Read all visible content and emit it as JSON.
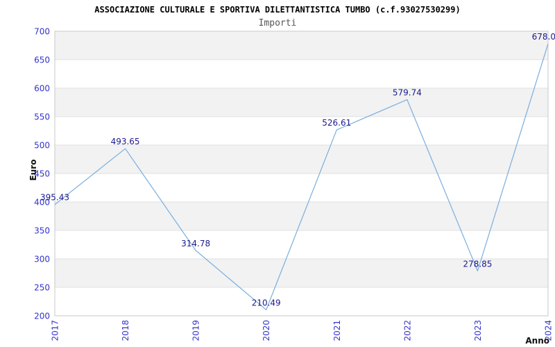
{
  "header": {
    "title": "ASSOCIAZIONE CULTURALE E SPORTIVA DILETTANTISTICA TUMBO (c.f.93027530299)",
    "subtitle": "Importi"
  },
  "chart_data": {
    "type": "line",
    "title": "Importi",
    "xlabel": "Anno",
    "ylabel": "Euro",
    "categories": [
      "2017",
      "2018",
      "2019",
      "2020",
      "2021",
      "2022",
      "2023",
      "2024"
    ],
    "values": [
      395.43,
      493.65,
      314.78,
      210.49,
      526.61,
      579.74,
      278.85,
      678.0
    ],
    "point_labels": [
      "395.43",
      "493.65",
      "314.78",
      "210.49",
      "526.61",
      "579.74",
      "278.85",
      "678.0"
    ],
    "ylim": [
      200,
      700
    ],
    "tick_step": 50,
    "grid": "horizontal-bands",
    "legend": "none",
    "colors": {
      "line": "#79aede",
      "tick_label": "#3333cc",
      "data_label": "#1a1a8c",
      "axis_title": "#111111",
      "band_fill": "#f2f2f2",
      "grid_line": "#e0e0e0",
      "plot_border": "#c9c9c9",
      "plot_background": "#ffffff"
    }
  }
}
